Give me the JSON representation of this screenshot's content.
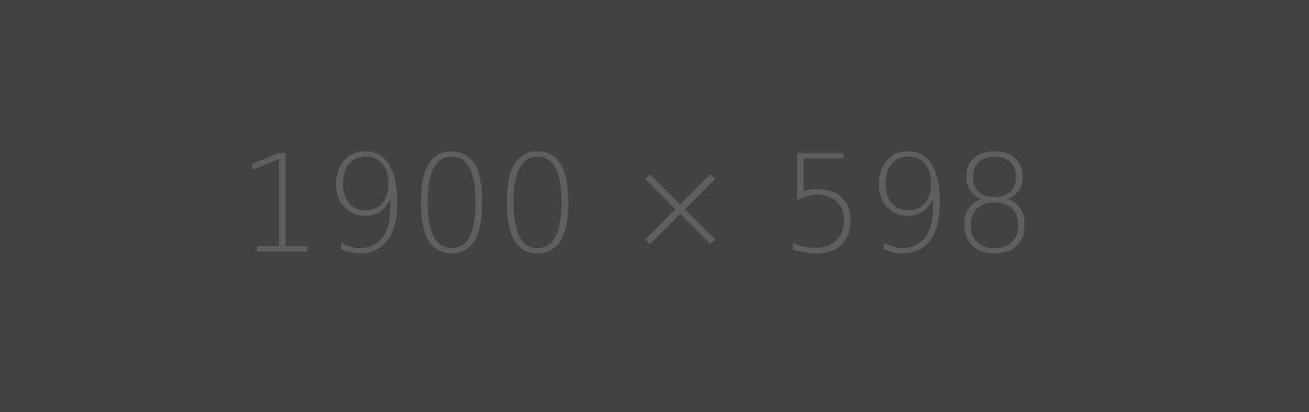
{
  "placeholder": {
    "label": "1900 × 598",
    "background_color": "#424242",
    "text_color": "#5f5f5f"
  }
}
